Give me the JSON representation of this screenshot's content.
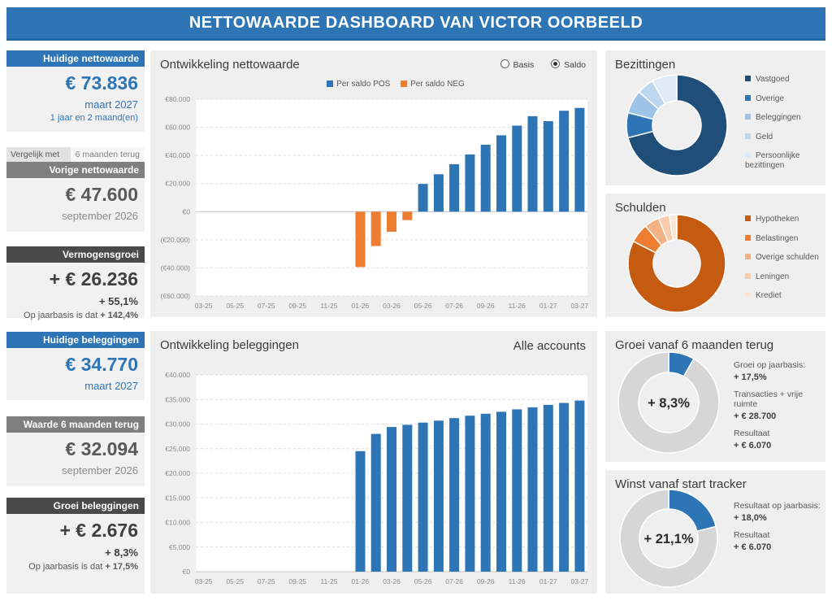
{
  "banner": {
    "title": "NETTOWAARDE DASHBOARD VAN VICTOR OORBEELD"
  },
  "sidebar": {
    "card1": {
      "header": "Huidige nettowaarde",
      "value": "€ 73.836",
      "period": "maart 2027",
      "duration": "1 jaar en 2 maand(en)"
    },
    "compare": {
      "label": "Vergelijk met",
      "value": "6 maanden terug"
    },
    "card2": {
      "header": "Vorige nettowaarde",
      "value": "€ 47.600",
      "period": "september 2026"
    },
    "card3": {
      "header": "Vermogensgroei",
      "value": "+ € 26.236",
      "pct": "+ 55,1%",
      "note_label": "Op jaarbasis is dat",
      "note_value": "+ 142,4%"
    },
    "card4": {
      "header": "Huidige beleggingen",
      "value": "€ 34.770",
      "period": "maart 2027"
    },
    "card5": {
      "header": "Waarde 6 maanden terug",
      "value": "€ 32.094",
      "period": "september 2026"
    },
    "card6": {
      "header": "Groei beleggingen",
      "value": "+ € 2.676",
      "pct": "+ 8,3%",
      "note_label": "Op jaarbasis is dat",
      "note_value": "+ 17,5%"
    }
  },
  "controls": {
    "radio": {
      "options": [
        {
          "label": "Basis",
          "selected": false
        },
        {
          "label": "Saldo",
          "selected": true
        }
      ]
    }
  },
  "chart_data": [
    {
      "id": "networth",
      "type": "bar",
      "title": "Ontwikkeling nettowaarde",
      "legend": [
        {
          "label": "Per saldo POS",
          "color": "#2E75B6"
        },
        {
          "label": "Per saldo NEG",
          "color": "#ED7D31"
        }
      ],
      "months": [
        "03-25",
        "04-25",
        "05-25",
        "06-25",
        "07-25",
        "08-25",
        "09-25",
        "10-25",
        "11-25",
        "12-25",
        "01-26",
        "02-26",
        "03-26",
        "04-26",
        "05-26",
        "06-26",
        "07-26",
        "08-26",
        "09-26",
        "10-26",
        "11-26",
        "12-26",
        "01-27",
        "02-27",
        "03-27"
      ],
      "values": [
        null,
        null,
        null,
        null,
        null,
        null,
        null,
        null,
        null,
        null,
        -39400,
        -24500,
        -14300,
        -6000,
        19700,
        26600,
        33700,
        40700,
        47600,
        54300,
        61200,
        67900,
        64400,
        71800,
        73836
      ],
      "ylim": [
        -60000,
        80000
      ],
      "y_ticks": [
        {
          "v": 80000,
          "label": "€80.000"
        },
        {
          "v": 60000,
          "label": "€60.000"
        },
        {
          "v": 40000,
          "label": "€40.000"
        },
        {
          "v": 20000,
          "label": "€20.000"
        },
        {
          "v": 0,
          "label": "€0"
        },
        {
          "v": -20000,
          "label": "(€20.000)"
        },
        {
          "v": -40000,
          "label": "(€40.000)"
        },
        {
          "v": -60000,
          "label": "(€60.000)"
        }
      ],
      "colors": {
        "pos": "#2E75B6",
        "neg": "#ED7D31"
      },
      "grid": true,
      "legend_position": "top"
    },
    {
      "id": "investments",
      "type": "bar",
      "title": "Ontwikkeling beleggingen",
      "subtitle": "Alle accounts",
      "months": [
        "03-25",
        "04-25",
        "05-25",
        "06-25",
        "07-25",
        "08-25",
        "09-25",
        "10-25",
        "11-25",
        "12-25",
        "01-26",
        "02-26",
        "03-26",
        "04-26",
        "05-26",
        "06-26",
        "07-26",
        "08-26",
        "09-26",
        "10-26",
        "11-26",
        "12-26",
        "01-27",
        "02-27",
        "03-27"
      ],
      "values": [
        null,
        null,
        null,
        null,
        null,
        null,
        null,
        null,
        null,
        null,
        24500,
        28000,
        29400,
        29850,
        30300,
        30700,
        31200,
        31700,
        32094,
        32500,
        33000,
        33400,
        33900,
        34300,
        34770
      ],
      "ylim": [
        0,
        40000
      ],
      "y_ticks": [
        {
          "v": 40000,
          "label": "€40.000"
        },
        {
          "v": 35000,
          "label": "€35.000"
        },
        {
          "v": 30000,
          "label": "€30.000"
        },
        {
          "v": 25000,
          "label": "€25.000"
        },
        {
          "v": 20000,
          "label": "€20.000"
        },
        {
          "v": 15000,
          "label": "€15.000"
        },
        {
          "v": 10000,
          "label": "€10.000"
        },
        {
          "v": 5000,
          "label": "€5.000"
        },
        {
          "v": 0,
          "label": "€0"
        }
      ],
      "colors": {
        "pos": "#2E75B6",
        "neg": "#ED7D31"
      },
      "grid": true
    },
    {
      "id": "assets",
      "type": "pie",
      "title": "Bezittingen",
      "slices": [
        {
          "label": "Vastgoed",
          "value": 71,
          "color": "#1F4E79"
        },
        {
          "label": "Overige",
          "value": 8,
          "color": "#2E75B6"
        },
        {
          "label": "Beleggingen",
          "value": 7.5,
          "color": "#9DC3E6"
        },
        {
          "label": "Geld",
          "value": 5.5,
          "color": "#BDD7EE"
        },
        {
          "label": "Persoonlijke bezittingen",
          "value": 8,
          "color": "#DEEBF7"
        }
      ],
      "legend_position": "right"
    },
    {
      "id": "debts",
      "type": "pie",
      "title": "Schulden",
      "slices": [
        {
          "label": "Hypotheken",
          "value": 82.5,
          "color": "#C55A11"
        },
        {
          "label": "Belastingen",
          "value": 6.4,
          "color": "#ED7D31"
        },
        {
          "label": "Overige schulden",
          "value": 5,
          "color": "#F4B183"
        },
        {
          "label": "Leningen",
          "value": 3.6,
          "color": "#F8CBAD"
        },
        {
          "label": "Krediet",
          "value": 2.5,
          "color": "#FBE5D6"
        }
      ],
      "legend_position": "right"
    },
    {
      "id": "growth6m",
      "type": "pie",
      "title": "Groei vanaf 6 maanden terug",
      "center_label": "+ 8,3%",
      "slices": [
        {
          "label": "groei",
          "value": 8.3,
          "color": "#2E75B6"
        },
        {
          "label": "rest",
          "value": 91.7,
          "color": "#D6D6D6"
        }
      ],
      "details": [
        {
          "label": "Groei op jaarbasis:",
          "value": "+ 17,5%"
        },
        {
          "label": "Transacties + vrije ruimte",
          "value": "+ € 28.700"
        },
        {
          "label": "Resultaat",
          "value": "+ € 6.070"
        }
      ]
    },
    {
      "id": "profit",
      "type": "pie",
      "title": "Winst vanaf start tracker",
      "center_label": "+ 21,1%",
      "slices": [
        {
          "label": "winst",
          "value": 21.1,
          "color": "#2E75B6"
        },
        {
          "label": "rest",
          "value": 78.9,
          "color": "#D6D6D6"
        }
      ],
      "details": [
        {
          "label": "Resultaat op jaarbasis:",
          "value": "+ 18,0%"
        },
        {
          "label": "Resultaat",
          "value": "+ € 6.070"
        }
      ]
    }
  ]
}
